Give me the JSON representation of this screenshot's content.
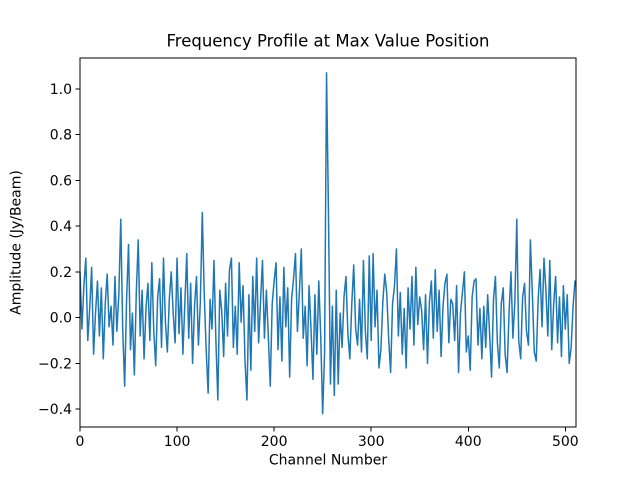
{
  "figure": {
    "background": "#ffffff"
  },
  "chart_data": {
    "type": "line",
    "title": "Frequency Profile at Max Value Position",
    "xlabel": "Channel Number",
    "ylabel": "Amplitude (Jy/Beam)",
    "line_color": "#1f77b4",
    "axis_color": "#000000",
    "xticks": [
      0,
      100,
      200,
      300,
      400,
      500
    ],
    "yticks": [
      -0.4,
      -0.2,
      0.0,
      0.2,
      0.4,
      0.6,
      0.8,
      1.0
    ],
    "xlim": [
      0,
      511
    ],
    "ylim": [
      -0.478,
      1.135
    ],
    "x_start": 0,
    "x_step": 2,
    "n_channels": 512,
    "grid": false,
    "legend": false,
    "peak": {
      "channel": 254,
      "value": 1.07
    },
    "secondary_peaks": [
      {
        "channel": 42,
        "value": 0.43
      },
      {
        "channel": 126,
        "value": 0.46
      },
      {
        "channel": 450,
        "value": 0.43
      }
    ],
    "min_value": -0.42,
    "values": [
      0.2,
      -0.05,
      0.14,
      0.26,
      -0.1,
      0.04,
      0.22,
      -0.16,
      0.02,
      0.16,
      -0.08,
      0.13,
      -0.18,
      0.06,
      0.19,
      -0.04,
      0.05,
      -0.12,
      0.18,
      -0.06,
      0.1,
      0.43,
      -0.05,
      -0.3,
      0.08,
      0.32,
      -0.14,
      0.02,
      -0.25,
      0.11,
      0.34,
      -0.08,
      0.12,
      -0.18,
      0.04,
      0.15,
      -0.1,
      0.24,
      -0.06,
      -0.21,
      0.09,
      0.17,
      -0.13,
      0.26,
      -0.02,
      -0.15,
      0.08,
      0.2,
      0.02,
      -0.11,
      0.26,
      -0.07,
      0.13,
      -0.16,
      0.06,
      0.28,
      -0.09,
      0.15,
      -0.2,
      0.05,
      0.18,
      -0.12,
      0.07,
      0.46,
      0.1,
      -0.14,
      -0.33,
      0.08,
      -0.05,
      0.25,
      -0.1,
      -0.36,
      0.12,
      0.03,
      -0.17,
      0.15,
      -0.08,
      0.21,
      0.26,
      -0.13,
      0.05,
      -0.16,
      0.24,
      -0.02,
      0.14,
      -0.19,
      -0.36,
      0.1,
      -0.23,
      0.18,
      -0.06,
      0.26,
      -0.11,
      0.07,
      0.25,
      -0.09,
      0.12,
      -0.08,
      -0.3,
      0.06,
      0.16,
      0.24,
      -0.14,
      0.09,
      -0.19,
      0.22,
      -0.04,
      0.13,
      -0.26,
      0.08,
      0.17,
      0.28,
      -0.06,
      0.11,
      0.3,
      -0.09,
      0.05,
      -0.21,
      0.14,
      -0.05,
      -0.27,
      0.1,
      -0.16,
      0.16,
      -0.08,
      -0.42,
      -0.15,
      1.07,
      0.45,
      -0.29,
      0.05,
      -0.34,
      0.12,
      -0.29,
      0.02,
      -0.13,
      0.09,
      0.18,
      -0.07,
      -0.18,
      0.06,
      0.23,
      -0.05,
      -0.12,
      0.08,
      -0.15,
      0.25,
      -0.06,
      -0.18,
      0.27,
      -0.1,
      0.28,
      -0.04,
      0.12,
      -0.22,
      -0.14,
      0.07,
      0.19,
      0.11,
      -0.09,
      -0.24,
      0.06,
      0.14,
      0.3,
      -0.08,
      0.11,
      -0.16,
      0.04,
      -0.22,
      0.13,
      -0.05,
      0.18,
      -0.12,
      0.22,
      -0.03,
      0.09,
      0.03,
      -0.14,
      0.1,
      -0.2,
      0.07,
      0.16,
      -0.09,
      0.21,
      -0.06,
      0.12,
      -0.17,
      0.05,
      0.15,
      0.19,
      -0.11,
      0.08,
      0.06,
      -0.1,
      0.14,
      -0.24,
      0.02,
      0.11,
      0.2,
      -0.15,
      -0.08,
      -0.23,
      0.09,
      0.16,
      0.17,
      -0.12,
      0.04,
      -0.18,
      0.05,
      -0.13,
      0.1,
      -0.07,
      -0.26,
      0.08,
      0.18,
      -0.11,
      -0.22,
      0.06,
      0.13,
      -0.16,
      -0.24,
      0.02,
      0.2,
      -0.09,
      0.07,
      0.43,
      -0.1,
      -0.18,
      0.09,
      0.15,
      -0.06,
      -0.12,
      0.34,
      0.11,
      -0.15,
      -0.19,
      0.08,
      0.21,
      -0.04,
      0.26,
      0.12,
      -0.08,
      0.25,
      -0.14,
      0.06,
      0.18,
      -0.11,
      0.09,
      -0.17,
      0.14,
      -0.05,
      0.1,
      -0.2,
      -0.13,
      0.05,
      0.16
    ]
  }
}
